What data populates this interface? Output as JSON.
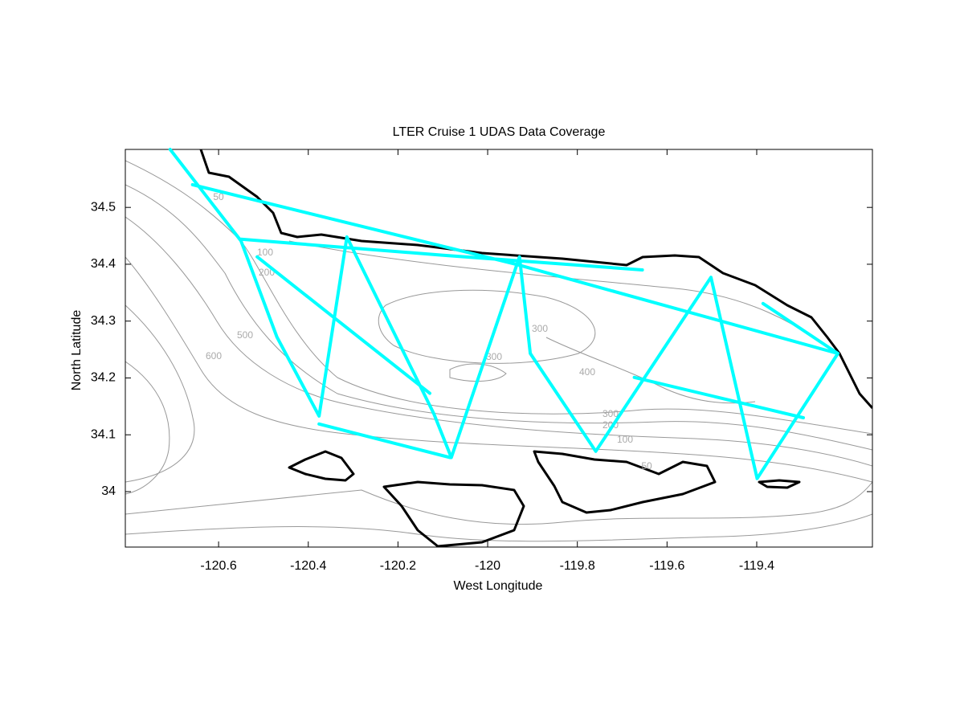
{
  "chart_data": {
    "type": "line",
    "title": "LTER Cruise 1 UDAS Data Coverage",
    "x_label": "West Longitude",
    "y_label": "North Latitude",
    "xlim": [
      -120.808,
      -119.142
    ],
    "ylim": [
      33.9025,
      34.602
    ],
    "xticks": [
      -120.6,
      -120.4,
      -120.2,
      -120,
      -119.8,
      -119.6,
      -119.4
    ],
    "yticks": [
      34,
      34.1,
      34.2,
      34.3,
      34.4,
      34.5
    ],
    "x": [
      -120.708,
      -120.55,
      -120.47,
      -120.376,
      -120.314,
      -120.12,
      -120.081,
      -119.929,
      -119.905,
      -119.759,
      -119.502,
      -119.399,
      -119.219,
      -119.386,
      null,
      -120.55,
      -120.102,
      -119.655,
      null,
      -120.658,
      -119.932,
      -119.219,
      null,
      -120.376,
      -120.084,
      null,
      -120.514,
      -120.129,
      null,
      -119.673,
      -119.296
    ],
    "series": [
      {
        "color": "#00ffff",
        "values": [
          34.602,
          34.441,
          34.272,
          34.133,
          34.448,
          34.137,
          34.06,
          34.413,
          34.243,
          34.071,
          34.377,
          34.023,
          34.243,
          34.331,
          null,
          34.444,
          34.416,
          34.39,
          null,
          34.54,
          34.399,
          34.243,
          null,
          34.119,
          34.06,
          null,
          34.413,
          34.173,
          null,
          34.201,
          34.13
        ]
      }
    ],
    "contour_labels": [
      "50",
      "100",
      "200",
      "500",
      "600",
      "300",
      "400",
      "300",
      "200",
      "100",
      "50",
      "300"
    ]
  }
}
